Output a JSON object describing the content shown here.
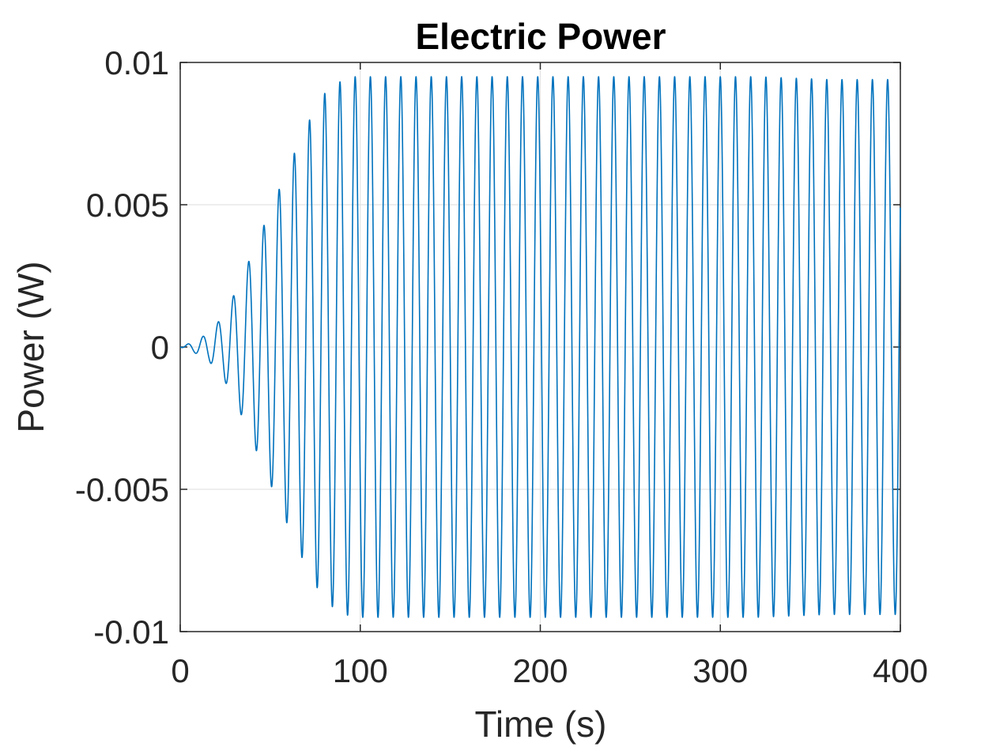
{
  "chart_data": {
    "type": "line",
    "title": "Electric Power",
    "xlabel": "Time (s)",
    "ylabel": "Power (W)",
    "xlim": [
      0,
      400
    ],
    "ylim": [
      -0.01,
      0.01
    ],
    "xticks": [
      0,
      100,
      200,
      300,
      400
    ],
    "xtick_labels": [
      "0",
      "100",
      "200",
      "300",
      "400"
    ],
    "yticks": [
      -0.01,
      -0.005,
      0,
      0.005,
      0.01
    ],
    "ytick_labels": [
      "-0.01",
      "-0.005",
      "0",
      "0.005",
      "0.01"
    ],
    "grid": true,
    "legend": null,
    "series": [
      {
        "color": "#0072BD",
        "oscillation_period_s": 8.45,
        "x": [
          0,
          8,
          16,
          24,
          32,
          40,
          48,
          56,
          64,
          72,
          80,
          88,
          96,
          104,
          120,
          160,
          200,
          240,
          280,
          320,
          360,
          400
        ],
        "amplitude": [
          0,
          0.0002,
          0.0005,
          0.0011,
          0.0021,
          0.0033,
          0.0045,
          0.0057,
          0.0069,
          0.008,
          0.0089,
          0.0093,
          0.0095,
          0.0095,
          0.0095,
          0.0095,
          0.0095,
          0.0095,
          0.0095,
          0.0095,
          0.0094,
          0.0094
        ]
      }
    ]
  }
}
